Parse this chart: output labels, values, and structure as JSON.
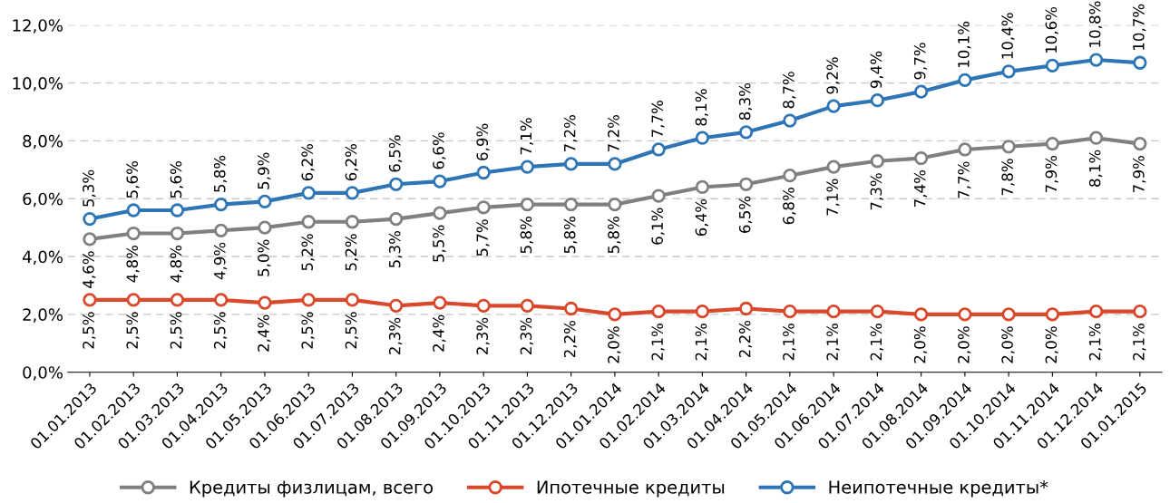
{
  "chart_data": {
    "type": "line",
    "categories": [
      "01.01.2013",
      "01.02.2013",
      "01.03.2013",
      "01.04.2013",
      "01.05.2013",
      "01.06.2013",
      "01.07.2013",
      "01.08.2013",
      "01.09.2013",
      "01.10.2013",
      "01.11.2013",
      "01.12.2013",
      "01.01.2014",
      "01.02.2014",
      "01.03.2014",
      "01.04.2014",
      "01.05.2014",
      "01.06.2014",
      "01.07.2014",
      "01.08.2014",
      "01.09.2014",
      "01.10.2014",
      "01.11.2014",
      "01.12.2014",
      "01.01.2015"
    ],
    "ylim": [
      0,
      12
    ],
    "yticks": [
      {
        "value": 0,
        "label": "0,0%"
      },
      {
        "value": 2,
        "label": "2,0%"
      },
      {
        "value": 4,
        "label": "4,0%"
      },
      {
        "value": 6,
        "label": "6,0%"
      },
      {
        "value": 8,
        "label": "8,0%"
      },
      {
        "value": 10,
        "label": "10,0%"
      },
      {
        "value": 12,
        "label": "12,0%"
      }
    ],
    "grid": "y",
    "legend": "bottom",
    "marker": "circle",
    "line_style": "solid",
    "series": [
      {
        "name": "Кредиты физлицам, всего",
        "color": "#808080",
        "values": [
          4.6,
          4.8,
          4.8,
          4.9,
          5.0,
          5.2,
          5.2,
          5.3,
          5.5,
          5.7,
          5.8,
          5.8,
          5.8,
          6.1,
          6.4,
          6.5,
          6.8,
          7.1,
          7.3,
          7.4,
          7.7,
          7.8,
          7.9,
          8.1,
          7.9
        ],
        "value_labels": [
          "4,6%",
          "4,8%",
          "4,8%",
          "4,9%",
          "5,0%",
          "5,2%",
          "5,2%",
          "5,3%",
          "5,5%",
          "5,7%",
          "5,8%",
          "5,8%",
          "5,8%",
          "6,1%",
          "6,4%",
          "6,5%",
          "6,8%",
          "7,1%",
          "7,3%",
          "7,4%",
          "7,7%",
          "7,8%",
          "7,9%",
          "8,1%",
          "7,9%"
        ]
      },
      {
        "name": "Ипотечные кредиты",
        "color": "#d9482b",
        "values": [
          2.5,
          2.5,
          2.5,
          2.5,
          2.4,
          2.5,
          2.5,
          2.3,
          2.4,
          2.3,
          2.3,
          2.2,
          2.0,
          2.1,
          2.1,
          2.2,
          2.1,
          2.1,
          2.1,
          2.0,
          2.0,
          2.0,
          2.0,
          2.1,
          2.1
        ],
        "value_labels": [
          "2,5%",
          "2,5%",
          "2,5%",
          "2,5%",
          "2,4%",
          "2,5%",
          "2,5%",
          "2,3%",
          "2,4%",
          "2,3%",
          "2,3%",
          "2,2%",
          "2,0%",
          "2,1%",
          "2,1%",
          "2,2%",
          "2,1%",
          "2,1%",
          "2,1%",
          "2,0%",
          "2,0%",
          "2,0%",
          "2,0%",
          "2,1%",
          "2,1%"
        ]
      },
      {
        "name": "Неипотечные кредиты*",
        "color": "#2e75b6",
        "values": [
          5.3,
          5.6,
          5.6,
          5.8,
          5.9,
          6.2,
          6.2,
          6.5,
          6.6,
          6.9,
          7.1,
          7.2,
          7.2,
          7.7,
          8.1,
          8.3,
          8.7,
          9.2,
          9.4,
          9.7,
          10.1,
          10.4,
          10.6,
          10.8,
          10.7
        ],
        "value_labels": [
          "5,3%",
          "5,6%",
          "5,6%",
          "5,8%",
          "5,9%",
          "6,2%",
          "6,2%",
          "6,5%",
          "6,6%",
          "6,9%",
          "7,1%",
          "7,2%",
          "7,2%",
          "7,7%",
          "8,1%",
          "8,3%",
          "8,7%",
          "9,2%",
          "9,4%",
          "9,7%",
          "10,1%",
          "10,4%",
          "10,6%",
          "10,8%",
          "10,7%"
        ]
      }
    ]
  }
}
